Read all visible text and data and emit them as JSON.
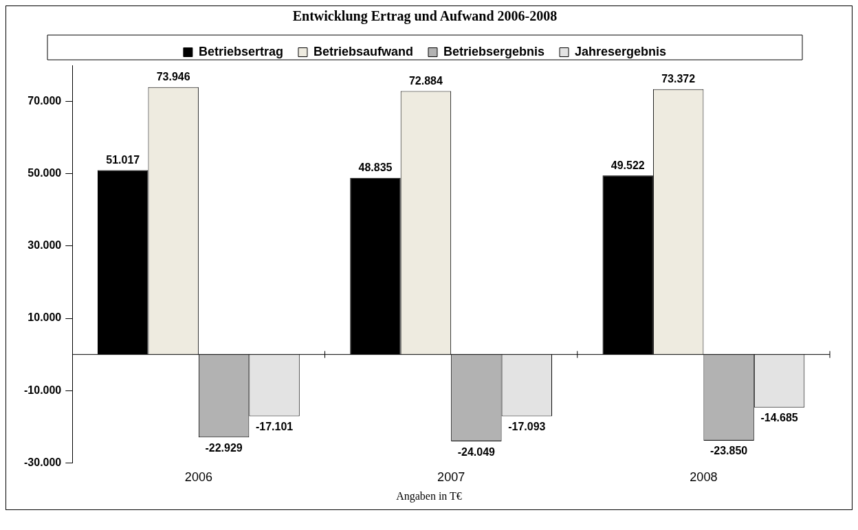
{
  "chart_data": {
    "type": "bar",
    "title": "Entwicklung Ertrag und Aufwand 2006-2008",
    "categories": [
      "2006",
      "2007",
      "2008"
    ],
    "series": [
      {
        "name": "Betriebsertrag",
        "color": "#000000",
        "values": [
          51017,
          48835,
          49522
        ],
        "value_labels": [
          "51.017",
          "48.835",
          "49.522"
        ]
      },
      {
        "name": "Betriebsaufwand",
        "color": "#eeebe0",
        "values": [
          73946,
          72884,
          73372
        ],
        "value_labels": [
          "73.946",
          "72.884",
          "73.372"
        ]
      },
      {
        "name": "Betriebsergebnis",
        "color": "#b2b2b2",
        "values": [
          -22929,
          -24049,
          -23850
        ],
        "value_labels": [
          "-22.929",
          "-24.049",
          "-23.850"
        ]
      },
      {
        "name": "Jahresergebnis",
        "color": "#e3e3e3",
        "values": [
          -17101,
          -17093,
          -14685
        ],
        "value_labels": [
          "-17.101",
          "-17.093",
          "-14.685"
        ]
      }
    ],
    "ylim": [
      -30000,
      80000
    ],
    "yticks": [
      {
        "value": -30000,
        "label": "-30.000"
      },
      {
        "value": -10000,
        "label": "-10.000"
      },
      {
        "value": 10000,
        "label": "10.000"
      },
      {
        "value": 30000,
        "label": "30.000"
      },
      {
        "value": 50000,
        "label": "50.000"
      },
      {
        "value": 70000,
        "label": "70.000"
      }
    ],
    "grid": false,
    "legend": "top",
    "annotations": [
      "Angaben in T€"
    ]
  }
}
